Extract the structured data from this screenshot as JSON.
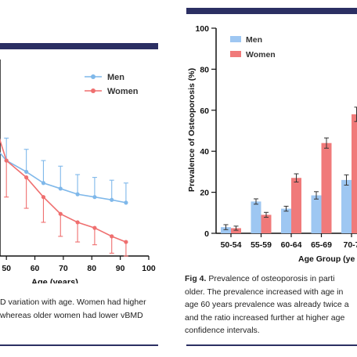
{
  "colors": {
    "men": "#7fb8ea",
    "women": "#ef6f6f",
    "men_bar": "#9ec7f2",
    "women_bar": "#f07a7a",
    "rule": "#2b2f63"
  },
  "left_panel": {
    "caption_lines": [
      "D variation with age. Women had higher",
      "whereas older women had lower vBMD"
    ]
  },
  "right_panel": {
    "caption_label": "Fig 4.",
    "caption_lines": [
      "Prevalence of osteoporosis in parti",
      "older. The prevalence increased with age in",
      "age 60 years prevalence was already twice a",
      "and the ratio increased further at higher age",
      "confidence intervals."
    ]
  },
  "chart_data": [
    {
      "type": "line",
      "xlabel": "Age (years)",
      "x_ticks": [
        "50",
        "60",
        "70",
        "80",
        "90",
        "100"
      ],
      "xlim": [
        45,
        100
      ],
      "series": [
        {
          "name": "Men",
          "x": [
            45,
            50,
            57,
            63,
            69,
            75,
            81,
            87,
            92
          ],
          "y": [
            0.5,
            0.44,
            0.4,
            0.36,
            0.34,
            0.32,
            0.31,
            0.3,
            0.29
          ],
          "err": [
            0.05,
            0.08,
            0.08,
            0.08,
            0.08,
            0.07,
            0.07,
            0.07,
            0.07
          ]
        },
        {
          "name": "Women",
          "x": [
            45,
            50,
            57,
            63,
            69,
            75,
            81,
            87,
            92
          ],
          "y": [
            0.6,
            0.44,
            0.38,
            0.31,
            0.25,
            0.22,
            0.2,
            0.17,
            0.15
          ],
          "err": [
            0.15,
            0.13,
            0.11,
            0.09,
            0.08,
            0.07,
            0.06,
            0.06,
            0.05
          ]
        }
      ]
    },
    {
      "type": "bar",
      "ylabel": "Prevalence of Osteoporosis (%)",
      "xlabel": "Age Group (ye",
      "categories": [
        "50-54",
        "55-59",
        "60-64",
        "65-69",
        "70-7"
      ],
      "ylim": [
        0,
        100
      ],
      "y_ticks": [
        "0",
        "20",
        "40",
        "60",
        "80",
        "100"
      ],
      "series": [
        {
          "name": "Men",
          "values": [
            3,
            15.5,
            12,
            18.5,
            26
          ],
          "err": [
            1.2,
            1.3,
            1.2,
            1.8,
            2.5
          ]
        },
        {
          "name": "Women",
          "values": [
            2.5,
            9,
            27,
            44,
            58
          ],
          "err": [
            1.0,
            1.2,
            2.0,
            2.5,
            3.5
          ]
        }
      ]
    }
  ]
}
